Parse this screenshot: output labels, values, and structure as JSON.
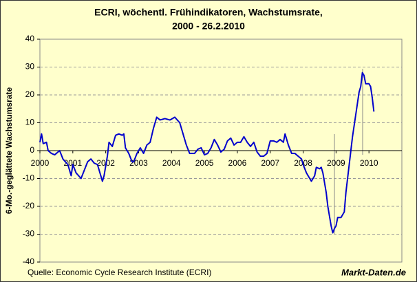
{
  "chart_data": {
    "type": "line",
    "title": "ECRI, wöchentl. Frühindikatoren, Wachstumsrate,",
    "subtitle": "2000 - 26.2.2010",
    "y_label": "6-Mo.-geglättete Wachstumsrate",
    "source": "Quelle: Economic Cycle Research Institute (ECRI)",
    "watermark": "Markt-Daten.de",
    "xlim": [
      2000,
      2011
    ],
    "xticks": [
      2000,
      2001,
      2002,
      2003,
      2004,
      2005,
      2006,
      2007,
      2008,
      2009,
      2010
    ],
    "ylim": [
      -40,
      40
    ],
    "yticks": [
      -40,
      -30,
      -20,
      -10,
      0,
      10,
      20,
      30,
      40
    ],
    "grid": true,
    "series": [
      {
        "color": "#0000cc",
        "x": [
          2000.0,
          2000.05,
          2000.1,
          2000.2,
          2000.25,
          2000.35,
          2000.45,
          2000.6,
          2000.7,
          2000.85,
          2000.95,
          2001.0,
          2001.1,
          2001.25,
          2001.35,
          2001.45,
          2001.55,
          2001.65,
          2001.75,
          2001.85,
          2001.9,
          2001.95,
          2002.05,
          2002.1,
          2002.2,
          2002.3,
          2002.4,
          2002.5,
          2002.55,
          2002.6,
          2002.7,
          2002.8,
          2002.85,
          2002.95,
          2003.05,
          2003.15,
          2003.25,
          2003.35,
          2003.45,
          2003.55,
          2003.65,
          2003.8,
          2003.95,
          2004.1,
          2004.25,
          2004.35,
          2004.45,
          2004.55,
          2004.7,
          2004.8,
          2004.9,
          2005.0,
          2005.1,
          2005.2,
          2005.3,
          2005.4,
          2005.5,
          2005.6,
          2005.7,
          2005.8,
          2005.9,
          2006.0,
          2006.1,
          2006.2,
          2006.3,
          2006.4,
          2006.5,
          2006.6,
          2006.7,
          2006.8,
          2006.9,
          2007.0,
          2007.1,
          2007.2,
          2007.3,
          2007.4,
          2007.45,
          2007.55,
          2007.65,
          2007.75,
          2007.85,
          2007.95,
          2008.0,
          2008.1,
          2008.15,
          2008.25,
          2008.35,
          2008.4,
          2008.5,
          2008.55,
          2008.6,
          2008.7,
          2008.75,
          2008.85,
          2008.9,
          2008.95,
          2009.0,
          2009.05,
          2009.15,
          2009.25,
          2009.3,
          2009.4,
          2009.5,
          2009.6,
          2009.7,
          2009.75,
          2009.8,
          2009.85,
          2009.9,
          2010.0,
          2010.05,
          2010.1,
          2010.15
        ],
        "values": [
          3,
          6,
          2.5,
          3,
          0,
          -1,
          -1.5,
          0,
          -3,
          -5,
          -9,
          -5,
          -8,
          -10,
          -7,
          -4,
          -3,
          -4.5,
          -5,
          -9,
          -11,
          -9,
          -2,
          3,
          1.5,
          5.5,
          6,
          5.5,
          6,
          1,
          -1,
          -4,
          -4,
          -1,
          1,
          -1,
          2,
          3,
          8,
          12,
          11,
          11.5,
          11,
          12,
          10,
          6,
          2,
          -1,
          -1,
          0.5,
          1,
          -1.5,
          -1,
          1,
          4,
          2,
          -0.5,
          0.5,
          3.5,
          4.5,
          2,
          3,
          3,
          5,
          3,
          1.5,
          3,
          -0.5,
          -2,
          -2,
          -1,
          3.5,
          3.5,
          3,
          4,
          3,
          6,
          2,
          -1,
          -1,
          -2,
          -3,
          -5,
          -8,
          -9,
          -11,
          -9,
          -6,
          -6.5,
          -6,
          -8,
          -15,
          -20,
          -27,
          -29.5,
          -28,
          -27,
          -24,
          -24,
          -22,
          -15,
          -5,
          5,
          13,
          21,
          23,
          28,
          27,
          24,
          24,
          23,
          19,
          14
        ]
      }
    ]
  }
}
